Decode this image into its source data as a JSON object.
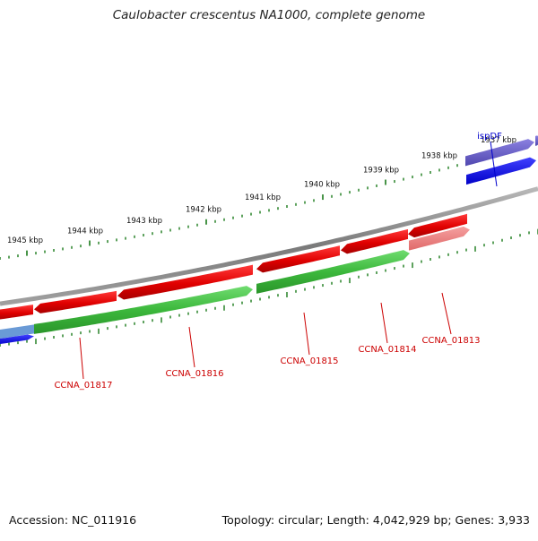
{
  "title": "Caulobacter crescentus NA1000, complete genome",
  "footer": {
    "accession": "Accession: NC_011916",
    "topology": "Topology: circular",
    "length": "Length: 4,042,929 bp",
    "genes": "Genes: 3,933"
  },
  "colors": {
    "forward_gene": "#e00000",
    "forward_gene_faded": "#f08080",
    "reverse_gene_green": "#3cb83c",
    "reverse_gene_blue": "#0000ee",
    "reverse_gene_faded_blue": "#6a5fc8",
    "tick": "#1a7a1a",
    "backbone": "#808080",
    "gene_label": "#cc0000",
    "ispdf_label": "#0000cc"
  },
  "ruler": {
    "unit": "kbp",
    "labels": [
      "1945 kbp",
      "1944 kbp",
      "1943 kbp",
      "1942 kbp",
      "1941 kbp",
      "1940 kbp",
      "1939 kbp",
      "1938 kbp",
      "1937 kbp"
    ]
  },
  "genes": [
    {
      "name": "CCNA_01817",
      "label": "CCNA_01817"
    },
    {
      "name": "CCNA_01816",
      "label": "CCNA_01816"
    },
    {
      "name": "CCNA_01815",
      "label": "CCNA_01815"
    },
    {
      "name": "CCNA_01814",
      "label": "CCNA_01814"
    },
    {
      "name": "CCNA_01813",
      "label": "CCNA_01813"
    },
    {
      "name": "ispDF",
      "label": "ispDF"
    }
  ]
}
